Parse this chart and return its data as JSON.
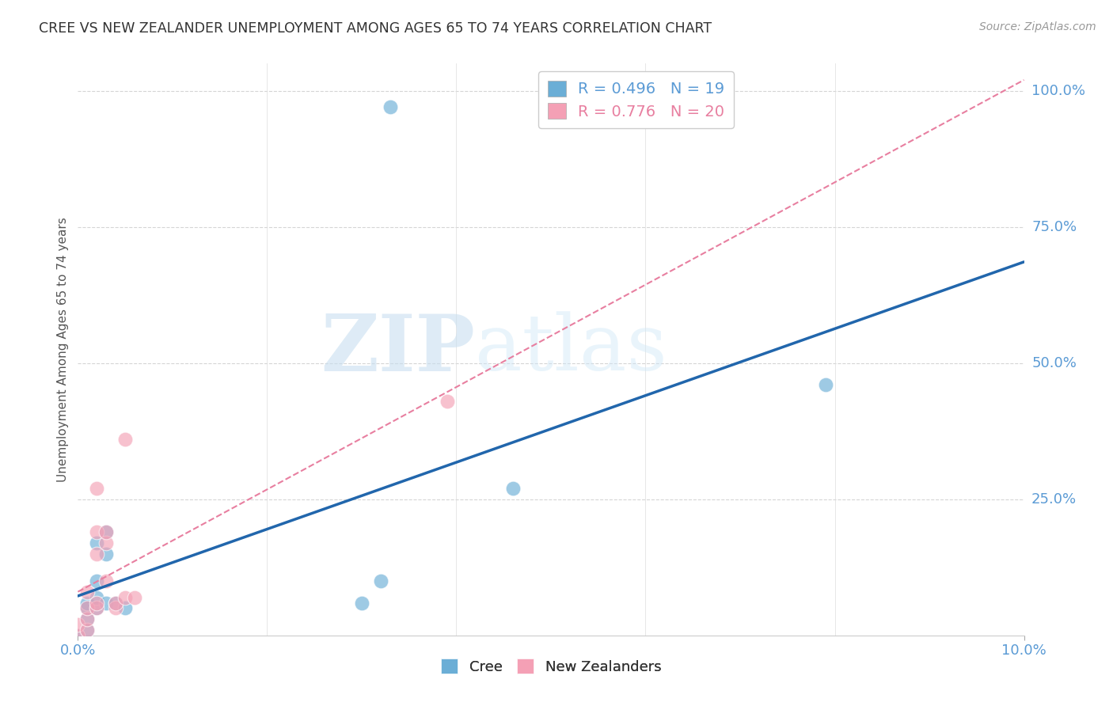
{
  "title": "CREE VS NEW ZEALANDER UNEMPLOYMENT AMONG AGES 65 TO 74 YEARS CORRELATION CHART",
  "source": "Source: ZipAtlas.com",
  "ylabel": "Unemployment Among Ages 65 to 74 years",
  "xlim": [
    0.0,
    0.1
  ],
  "ylim": [
    0.0,
    1.05
  ],
  "ytick_positions": [
    0.25,
    0.5,
    0.75,
    1.0
  ],
  "ytick_labels": [
    "25.0%",
    "50.0%",
    "75.0%",
    "100.0%"
  ],
  "cree_color": "#6baed6",
  "nz_color": "#f4a0b5",
  "cree_line_color": "#2166ac",
  "nz_line_color": "#e87fa0",
  "cree_R": 0.496,
  "cree_N": 19,
  "nz_R": 0.776,
  "nz_N": 20,
  "cree_points": [
    [
      0.0,
      0.0
    ],
    [
      0.001,
      0.01
    ],
    [
      0.001,
      0.03
    ],
    [
      0.001,
      0.05
    ],
    [
      0.001,
      0.06
    ],
    [
      0.002,
      0.05
    ],
    [
      0.002,
      0.07
    ],
    [
      0.002,
      0.1
    ],
    [
      0.002,
      0.17
    ],
    [
      0.003,
      0.06
    ],
    [
      0.003,
      0.15
    ],
    [
      0.003,
      0.19
    ],
    [
      0.004,
      0.06
    ],
    [
      0.005,
      0.05
    ],
    [
      0.03,
      0.06
    ],
    [
      0.032,
      0.1
    ],
    [
      0.046,
      0.27
    ],
    [
      0.079,
      0.46
    ],
    [
      0.033,
      0.97
    ]
  ],
  "nz_points": [
    [
      0.0,
      0.0
    ],
    [
      0.0,
      0.02
    ],
    [
      0.001,
      0.01
    ],
    [
      0.001,
      0.03
    ],
    [
      0.001,
      0.05
    ],
    [
      0.001,
      0.08
    ],
    [
      0.002,
      0.05
    ],
    [
      0.002,
      0.06
    ],
    [
      0.002,
      0.15
    ],
    [
      0.002,
      0.19
    ],
    [
      0.002,
      0.27
    ],
    [
      0.003,
      0.1
    ],
    [
      0.003,
      0.17
    ],
    [
      0.003,
      0.19
    ],
    [
      0.004,
      0.05
    ],
    [
      0.004,
      0.06
    ],
    [
      0.005,
      0.07
    ],
    [
      0.005,
      0.36
    ],
    [
      0.006,
      0.07
    ],
    [
      0.039,
      0.43
    ]
  ],
  "watermark_zip": "ZIP",
  "watermark_atlas": "atlas",
  "bg_color": "#ffffff",
  "grid_color": "#d5d5d5"
}
